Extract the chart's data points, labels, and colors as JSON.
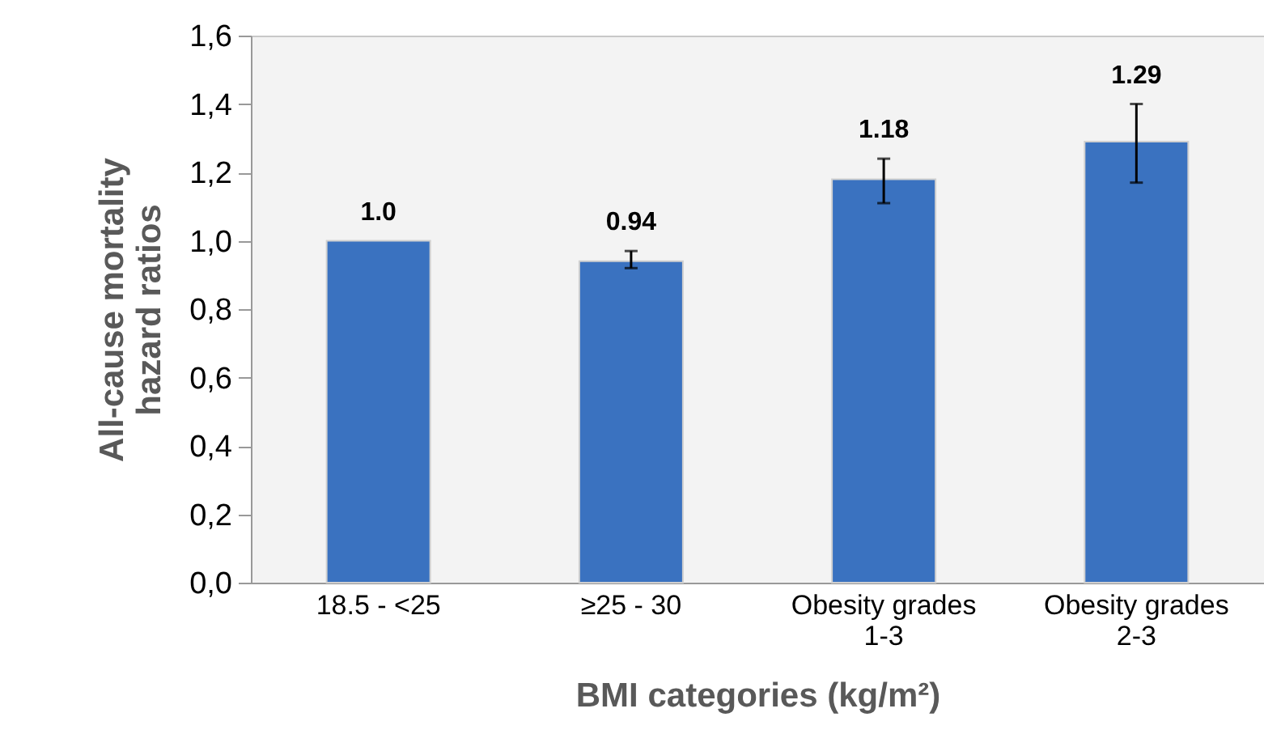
{
  "chart_data": {
    "type": "bar",
    "xlabel": "BMI categories (kg/m²)",
    "ylabel": "All-cause mortality hazard ratios",
    "categories": [
      "18.5 - <25",
      "≥25 - 30",
      "Obesity grades 1-3",
      "Obesity grades 2-3"
    ],
    "values": [
      1.0,
      0.94,
      1.18,
      1.29
    ],
    "errors": [
      null,
      [
        0.92,
        0.97
      ],
      [
        1.11,
        1.24
      ],
      [
        1.17,
        1.4
      ]
    ],
    "value_labels": [
      "1.0",
      "0.94",
      "1.18",
      "1.29"
    ],
    "color": "#3a72c0",
    "ylim": [
      0,
      1.6
    ],
    "yticks": [
      {
        "value": 0,
        "label": "0,0"
      },
      {
        "value": 0.2,
        "label": "0,2"
      },
      {
        "value": 0.4,
        "label": "0,4"
      },
      {
        "value": 0.6,
        "label": "0,6"
      },
      {
        "value": 0.8,
        "label": "0,8"
      },
      {
        "value": 1.0,
        "label": "1,0"
      },
      {
        "value": 1.2,
        "label": "1,2"
      },
      {
        "value": 1.4,
        "label": "1,4"
      },
      {
        "value": 1.6,
        "label": "1,6"
      }
    ],
    "grid": false
  }
}
